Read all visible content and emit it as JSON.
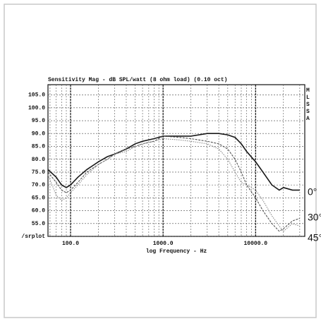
{
  "chart_data": {
    "type": "line",
    "title": "Sensitivity Mag - dB SPL/watt (8 ohm load) (0.10 oct)",
    "x_label": "log Frequency - Hz",
    "annotation": "MLSSA",
    "log_x": true,
    "grid": true,
    "legend": "right",
    "xlim": [
      57,
      34000
    ],
    "ylim": [
      50,
      109
    ],
    "xticks": [
      {
        "value": 100,
        "label": "100.0"
      },
      {
        "value": 1000,
        "label": "1000.0"
      },
      {
        "value": 10000,
        "label": "10000.0"
      }
    ],
    "xminor_ticks": [
      60,
      70,
      80,
      90,
      200,
      300,
      400,
      500,
      600,
      700,
      800,
      900,
      2000,
      3000,
      4000,
      5000,
      6000,
      7000,
      8000,
      9000,
      20000,
      30000
    ],
    "yticks": [
      {
        "value": 50,
        "label": "/srplot"
      },
      {
        "value": 55,
        "label": "55.0"
      },
      {
        "value": 60,
        "label": "60.0"
      },
      {
        "value": 65,
        "label": "65.0"
      },
      {
        "value": 70,
        "label": "70.0"
      },
      {
        "value": 75,
        "label": "75.0"
      },
      {
        "value": 80,
        "label": "80.0"
      },
      {
        "value": 85,
        "label": "85.0"
      },
      {
        "value": 90,
        "label": "90.0"
      },
      {
        "value": 95,
        "label": "95.0"
      },
      {
        "value": 100,
        "label": "100.0"
      },
      {
        "value": 105,
        "label": "105.0"
      }
    ],
    "x": [
      57,
      70,
      80,
      90,
      100,
      120,
      150,
      200,
      250,
      300,
      400,
      500,
      600,
      800,
      1000,
      1500,
      2000,
      3000,
      4000,
      5000,
      6000,
      7000,
      8000,
      10000,
      12000,
      15000,
      18000,
      20000,
      25000,
      30000
    ],
    "series": [
      {
        "name": "0°",
        "color": "#1a1a1a",
        "values": [
          76,
          73,
          70,
          69,
          70,
          73,
          76,
          79,
          81,
          82,
          84,
          86,
          87,
          88,
          89,
          89,
          89,
          90,
          90,
          89.5,
          88.5,
          86,
          83,
          79,
          75,
          70,
          68,
          69,
          68,
          68
        ]
      },
      {
        "name": "30°",
        "color": "#555555",
        "values": [
          75,
          71,
          68,
          67,
          68,
          71,
          75,
          78,
          80,
          82,
          84,
          85,
          86,
          87,
          89,
          88.5,
          88,
          87,
          86,
          84,
          80,
          75,
          70,
          65,
          60,
          55,
          52,
          53,
          56,
          57
        ]
      },
      {
        "name": "45°",
        "color": "#8a8a8a",
        "values": [
          74,
          66,
          64,
          65,
          67,
          70,
          74,
          78,
          80,
          82,
          83,
          85,
          86,
          87,
          88,
          87.5,
          87,
          86,
          84,
          80,
          75,
          71,
          70,
          68,
          64,
          58,
          54,
          52,
          55,
          54
        ]
      }
    ]
  }
}
